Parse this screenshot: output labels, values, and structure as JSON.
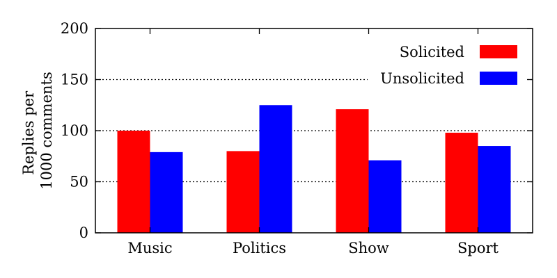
{
  "chart_data": {
    "type": "bar",
    "title": "",
    "xlabel": "",
    "ylabel_lines": [
      "Replies per",
      "1000 comments"
    ],
    "categories": [
      "Music",
      "Politics",
      "Show",
      "Sport"
    ],
    "series": [
      {
        "name": "Solicited",
        "color": "#ff0000",
        "values": [
          100,
          80,
          121,
          98
        ]
      },
      {
        "name": "Unsolicited",
        "color": "#0000ff",
        "values": [
          79,
          125,
          71,
          85
        ]
      }
    ],
    "ylim": [
      0,
      200
    ],
    "yticks": [
      "0",
      "50",
      "100",
      "150",
      "200"
    ],
    "ytick_values": [
      0,
      50,
      100,
      150,
      200
    ],
    "grid": "dotted horizontal at 50, 100, 150",
    "legend_position": "top-right"
  }
}
